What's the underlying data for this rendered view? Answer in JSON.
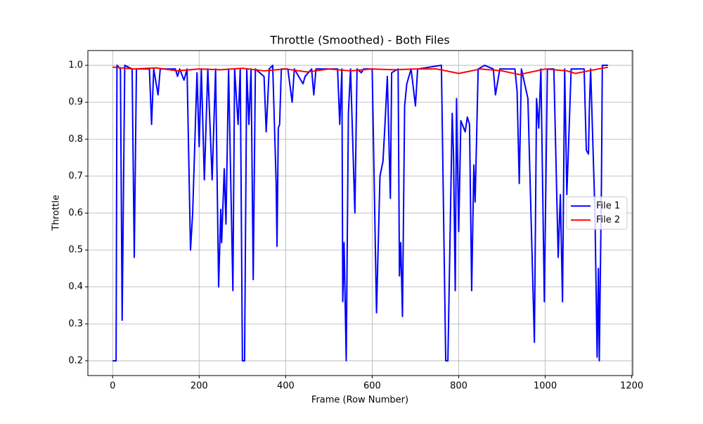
{
  "chart_data": {
    "type": "line",
    "title": "Throttle (Smoothed) - Both Files",
    "xlabel": "Frame (Row Number)",
    "ylabel": "Throttle",
    "xlim": [
      -57.25,
      1202.25
    ],
    "xticks": [
      0,
      200,
      400,
      600,
      800,
      1000,
      1200
    ],
    "ylim": [
      0.16,
      1.04
    ],
    "yticks": [
      0.2,
      0.3,
      0.4,
      0.5,
      0.6,
      0.7,
      0.8,
      0.9,
      {
        "value": 1,
        "label": "1.0"
      }
    ],
    "grid": true,
    "legend": "center right",
    "series": [
      {
        "name": "File 1",
        "color": "#0000ff",
        "x": [
          0,
          8,
          10,
          18,
          22,
          28,
          45,
          50,
          55,
          85,
          90,
          95,
          105,
          110,
          145,
          150,
          155,
          165,
          172,
          180,
          185,
          195,
          200,
          205,
          212,
          220,
          230,
          238,
          245,
          250,
          252,
          258,
          262,
          268,
          278,
          282,
          290,
          295,
          300,
          305,
          310,
          315,
          320,
          325,
          330,
          350,
          355,
          362,
          370,
          378,
          380,
          383,
          386,
          390,
          405,
          415,
          420,
          440,
          445,
          460,
          465,
          470,
          520,
          525,
          530,
          532,
          535,
          540,
          545,
          550,
          560,
          565,
          575,
          580,
          600,
          610,
          618,
          625,
          630,
          635,
          642,
          645,
          660,
          663,
          666,
          670,
          675,
          680,
          690,
          700,
          705,
          760,
          770,
          775,
          785,
          788,
          792,
          795,
          800,
          805,
          815,
          820,
          825,
          830,
          835,
          838,
          845,
          860,
          880,
          885,
          895,
          930,
          935,
          940,
          945,
          960,
          975,
          980,
          985,
          990,
          998,
          1005,
          1020,
          1030,
          1035,
          1040,
          1045,
          1050,
          1060,
          1090,
          1095,
          1100,
          1102,
          1105,
          1115,
          1120,
          1123,
          1125,
          1130,
          1132,
          1145
        ],
        "values": [
          0.2,
          0.2,
          1.0,
          0.99,
          0.31,
          1.0,
          0.99,
          0.48,
          0.99,
          0.99,
          0.84,
          0.99,
          0.92,
          0.99,
          0.99,
          0.97,
          0.99,
          0.96,
          0.99,
          0.5,
          0.6,
          0.98,
          0.78,
          0.99,
          0.69,
          0.99,
          0.69,
          0.99,
          0.4,
          0.61,
          0.52,
          0.72,
          0.57,
          0.99,
          0.39,
          0.99,
          0.84,
          0.99,
          0.2,
          0.2,
          0.99,
          0.84,
          0.99,
          0.42,
          0.99,
          0.97,
          0.82,
          0.99,
          1.0,
          0.68,
          0.51,
          0.83,
          0.84,
          0.99,
          0.99,
          0.9,
          0.99,
          0.95,
          0.97,
          0.99,
          0.92,
          0.99,
          0.99,
          0.84,
          0.99,
          0.36,
          0.52,
          0.2,
          0.87,
          0.99,
          0.6,
          0.99,
          0.98,
          0.99,
          0.99,
          0.33,
          0.7,
          0.74,
          0.85,
          0.97,
          0.64,
          0.98,
          0.99,
          0.43,
          0.52,
          0.32,
          0.89,
          0.95,
          0.99,
          0.89,
          0.99,
          1.0,
          0.2,
          0.2,
          0.87,
          0.76,
          0.39,
          0.91,
          0.55,
          0.85,
          0.82,
          0.86,
          0.84,
          0.39,
          0.73,
          0.63,
          0.99,
          1.0,
          0.99,
          0.92,
          0.99,
          0.99,
          0.93,
          0.68,
          0.99,
          0.91,
          0.25,
          0.91,
          0.83,
          0.99,
          0.36,
          0.99,
          0.99,
          0.48,
          0.65,
          0.36,
          0.99,
          0.65,
          0.99,
          0.99,
          0.77,
          0.76,
          0.88,
          0.99,
          0.6,
          0.21,
          0.45,
          0.2,
          0.68,
          1.0,
          1.0
        ]
      },
      {
        "name": "File 2",
        "color": "#ff0000",
        "x": [
          0,
          50,
          100,
          150,
          200,
          250,
          300,
          350,
          400,
          450,
          500,
          550,
          600,
          650,
          700,
          750,
          800,
          850,
          900,
          940,
          1000,
          1050,
          1070,
          1100,
          1145
        ],
        "values": [
          0.995,
          0.99,
          0.993,
          0.985,
          0.99,
          0.988,
          0.992,
          0.985,
          0.99,
          0.982,
          0.99,
          0.985,
          0.99,
          0.988,
          0.99,
          0.99,
          0.978,
          0.99,
          0.985,
          0.975,
          0.99,
          0.985,
          0.978,
          0.985,
          0.995
        ]
      }
    ]
  }
}
